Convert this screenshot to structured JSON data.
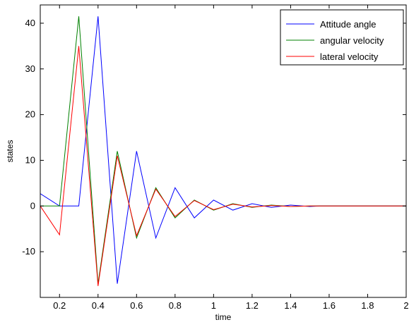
{
  "chart_data": {
    "type": "line",
    "title": "",
    "xlabel": "time",
    "ylabel": "states",
    "xlim": [
      0.1,
      2.0
    ],
    "ylim": [
      -20,
      44
    ],
    "xticks": [
      0.2,
      0.4,
      0.6,
      0.8,
      1.0,
      1.2,
      1.4,
      1.6,
      1.8,
      2.0
    ],
    "xtick_labels": [
      "0.2",
      "0.4",
      "0.6",
      "0.8",
      "1",
      "1.2",
      "1.4",
      "1.6",
      "1.8",
      "2"
    ],
    "yticks": [
      -10,
      0,
      10,
      20,
      30,
      40
    ],
    "ytick_labels": [
      "-10",
      "0",
      "10",
      "20",
      "30",
      "40"
    ],
    "grid": false,
    "legend_position": "top-right",
    "series": [
      {
        "name": "Attitude angle",
        "color": "#0000ff",
        "x": [
          0.1,
          0.2,
          0.3,
          0.4,
          0.5,
          0.6,
          0.7,
          0.8,
          0.9,
          1.0,
          1.1,
          1.2,
          1.3,
          1.4,
          1.5,
          1.55,
          1.6,
          1.7,
          1.8,
          1.9,
          2.0
        ],
        "y": [
          2.7,
          0,
          0,
          41.5,
          -17,
          12,
          -7,
          4,
          -2.6,
          1.3,
          -0.9,
          0.5,
          -0.3,
          0.2,
          -0.1,
          0,
          0,
          0,
          0,
          0,
          0
        ]
      },
      {
        "name": "angular velocity",
        "color": "#008000",
        "x": [
          0.1,
          0.2,
          0.3,
          0.4,
          0.5,
          0.6,
          0.7,
          0.8,
          0.9,
          1.0,
          1.1,
          1.2,
          1.3,
          1.4,
          1.5,
          1.55,
          1.6,
          1.7,
          1.8,
          1.9,
          2.0
        ],
        "y": [
          0,
          0,
          41.5,
          -17,
          12,
          -7,
          4,
          -2.6,
          1.3,
          -0.9,
          0.5,
          -0.3,
          0.2,
          -0.1,
          0,
          0,
          0,
          0,
          0,
          0,
          0
        ]
      },
      {
        "name": "lateral velocity",
        "color": "#ff0000",
        "x": [
          0.1,
          0.2,
          0.3,
          0.4,
          0.5,
          0.6,
          0.7,
          0.8,
          0.9,
          1.0,
          1.1,
          1.2,
          1.3,
          1.4,
          1.5,
          1.55,
          1.6,
          1.7,
          1.8,
          1.9,
          2.0
        ],
        "y": [
          0,
          -6.3,
          35,
          -17.5,
          11,
          -6.5,
          3.7,
          -2.3,
          1.2,
          -0.8,
          0.4,
          -0.2,
          0.1,
          -0.1,
          0,
          0,
          0,
          0,
          0,
          0,
          0
        ]
      }
    ]
  }
}
